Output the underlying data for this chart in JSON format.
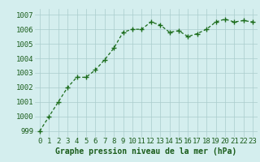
{
  "x": [
    0,
    1,
    2,
    3,
    4,
    5,
    6,
    7,
    8,
    9,
    10,
    11,
    12,
    13,
    14,
    15,
    16,
    17,
    18,
    19,
    20,
    21,
    22,
    23
  ],
  "y": [
    999.0,
    1000.0,
    1001.0,
    1002.0,
    1002.7,
    1002.7,
    1003.2,
    1003.9,
    1004.7,
    1005.8,
    1006.0,
    1006.0,
    1006.5,
    1006.3,
    1005.8,
    1005.9,
    1005.5,
    1005.7,
    1006.0,
    1006.5,
    1006.7,
    1006.5,
    1006.6,
    1006.5
  ],
  "line_color": "#1a6b1a",
  "marker": "+",
  "marker_size": 4,
  "bg_color": "#d4eeee",
  "grid_color": "#aacccc",
  "xlabel": "Graphe pression niveau de la mer (hPa)",
  "xlabel_fontsize": 7,
  "xlabel_color": "#1a5c1a",
  "ylabel_ticks": [
    999,
    1000,
    1001,
    1002,
    1003,
    1004,
    1005,
    1006,
    1007
  ],
  "xtick_labels": [
    "0",
    "1",
    "2",
    "3",
    "4",
    "5",
    "6",
    "7",
    "8",
    "9",
    "10",
    "11",
    "12",
    "13",
    "14",
    "15",
    "16",
    "17",
    "18",
    "19",
    "20",
    "21",
    "22",
    "23"
  ],
  "ylim": [
    998.6,
    1007.4
  ],
  "xlim": [
    -0.5,
    23.5
  ],
  "tick_fontsize": 6.5,
  "line_width": 0.9
}
